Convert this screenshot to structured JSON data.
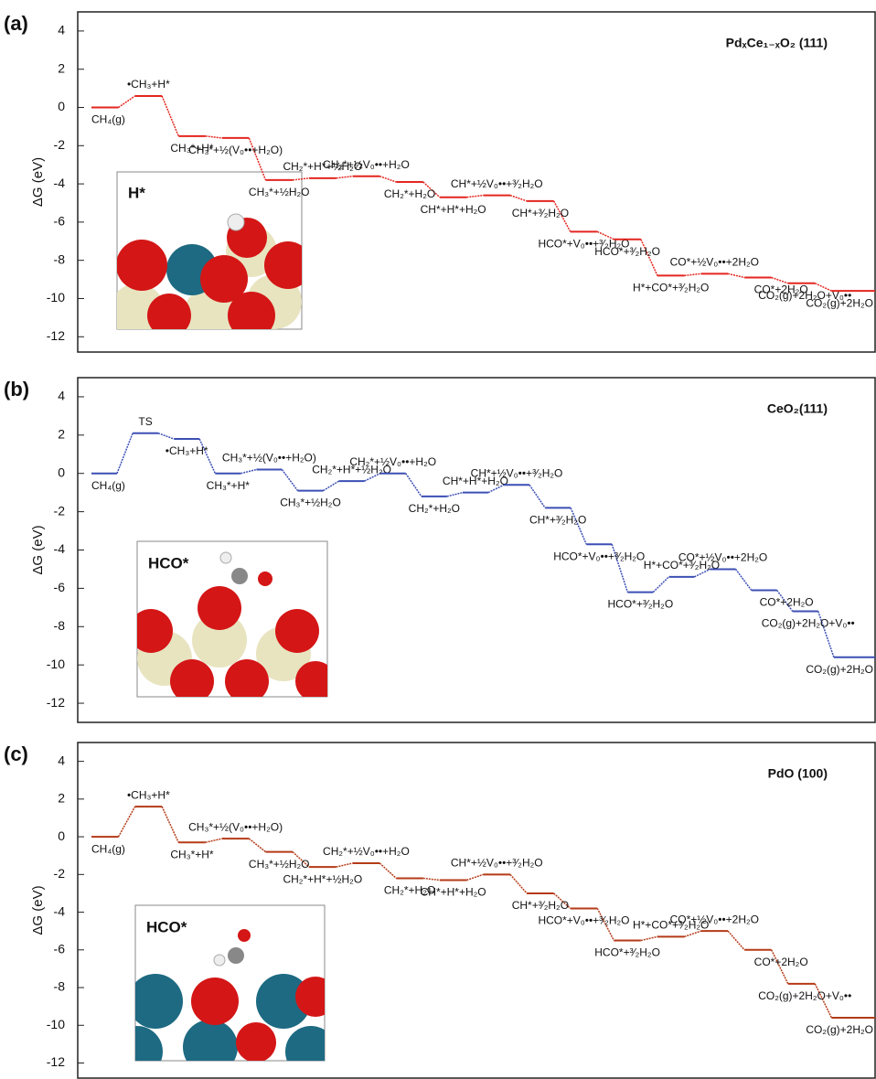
{
  "chart_data": [
    {
      "type": "energy",
      "panel_label": "(a)",
      "title": "PdₓCe₁₋ₓO₂ (111)",
      "y_label": "ΔG (eV)",
      "inset_label": "H*",
      "color": "#e3261f",
      "categories": [
        "CH₄(g)",
        "•CH₃+H*",
        "CH₃*+H*",
        "CH₃*+½(V₀••+H₂O)",
        "CH₃*+½H₂O",
        "CH₂*+H*+½H₂O",
        "CH₂*+½V₀••+H₂O",
        "CH₂*+H₂O",
        "CH*+H*+H₂O",
        "CH*+½V₀••+³⁄₂H₂O",
        "CH*+³⁄₂H₂O",
        "HCO*+V₀••+³⁄₂H₂O",
        "HCO*+³⁄₂H₂O",
        "H*+CO*+³⁄₂H₂O",
        "CO*+½V₀••+2H₂O",
        "CO*+2H₂O",
        "CO₂(g)+2H₂O+V₀••",
        "CO₂(g)+2H₂O"
      ],
      "values": [
        0,
        0.6,
        -1.5,
        -1.6,
        -3.8,
        -3.7,
        -3.6,
        -3.9,
        -4.7,
        -4.6,
        -4.9,
        -6.5,
        -6.9,
        -8.8,
        -8.7,
        -8.9,
        -9.2,
        -9.6
      ],
      "ylim": [
        -12.8,
        5
      ],
      "yticks": [
        4,
        2,
        0,
        -2,
        -4,
        -6,
        -8,
        -10,
        -12
      ]
    },
    {
      "type": "energy",
      "panel_label": "(b)",
      "title": "CeO₂(111)",
      "y_label": "ΔG (eV)",
      "inset_label": "HCO*",
      "color": "#3c4fb4",
      "categories": [
        "CH₄(g)",
        "TS",
        "•CH₃+H*",
        "CH₃*+H*",
        "CH₃*+½(V₀••+H₂O)",
        "CH₃*+½H₂O",
        "CH₂*+H*+½H₂O",
        "CH₂*+½V₀••+H₂O",
        "CH₂*+H₂O",
        "CH*+H*+H₂O",
        "CH*+½V₀••+³⁄₂H₂O",
        "CH*+³⁄₂H₂O",
        "HCO*+V₀••+³⁄₂H₂O",
        "HCO*+³⁄₂H₂O",
        "H*+CO*+³⁄₂H₂O",
        "CO*+½V₀••+2H₂O",
        "CO*+2H₂O",
        "CO₂(g)+2H₂O+V₀••",
        "CO₂(g)+2H₂O"
      ],
      "values": [
        0,
        2.1,
        1.8,
        0,
        0.2,
        -0.9,
        -0.4,
        0,
        -1.2,
        -1.0,
        -0.6,
        -1.8,
        -3.7,
        -6.2,
        -5.4,
        -5.0,
        -6.1,
        -7.2,
        -9.6
      ],
      "ylim": [
        -13,
        5
      ],
      "yticks": [
        4,
        2,
        0,
        -2,
        -4,
        -6,
        -8,
        -10,
        -12
      ]
    },
    {
      "type": "energy",
      "panel_label": "(c)",
      "title": "PdO (100)",
      "y_label": "ΔG (eV)",
      "inset_label": "HCO*",
      "color": "#b53a17",
      "categories": [
        "CH₄(g)",
        "•CH₃+H*",
        "CH₃*+H*",
        "CH₃*+½(V₀••+H₂O)",
        "CH₃*+½H₂O",
        "CH₂*+H*+½H₂O",
        "CH₂*+½V₀••+H₂O",
        "CH₂*+H₂O",
        "CH*+H*+H₂O",
        "CH*+½V₀••+³⁄₂H₂O",
        "CH*+³⁄₂H₂O",
        "HCO*+V₀••+³⁄₂H₂O",
        "HCO*+³⁄₂H₂O",
        "H*+CO*+³⁄₂H₂O",
        "CO*+½V₀••+2H₂O",
        "CO*+2H₂O",
        "CO₂(g)+2H₂O+V₀••",
        "CO₂(g)+2H₂O"
      ],
      "values": [
        0,
        1.6,
        -0.3,
        -0.1,
        -0.8,
        -1.6,
        -1.4,
        -2.2,
        -2.3,
        -2.0,
        -3.0,
        -3.8,
        -5.5,
        -5.3,
        -5.0,
        -6.0,
        -7.8,
        -9.6
      ],
      "ylim": [
        -12.8,
        5
      ],
      "yticks": [
        4,
        2,
        0,
        -2,
        -4,
        -6,
        -8,
        -10,
        -12
      ]
    }
  ]
}
